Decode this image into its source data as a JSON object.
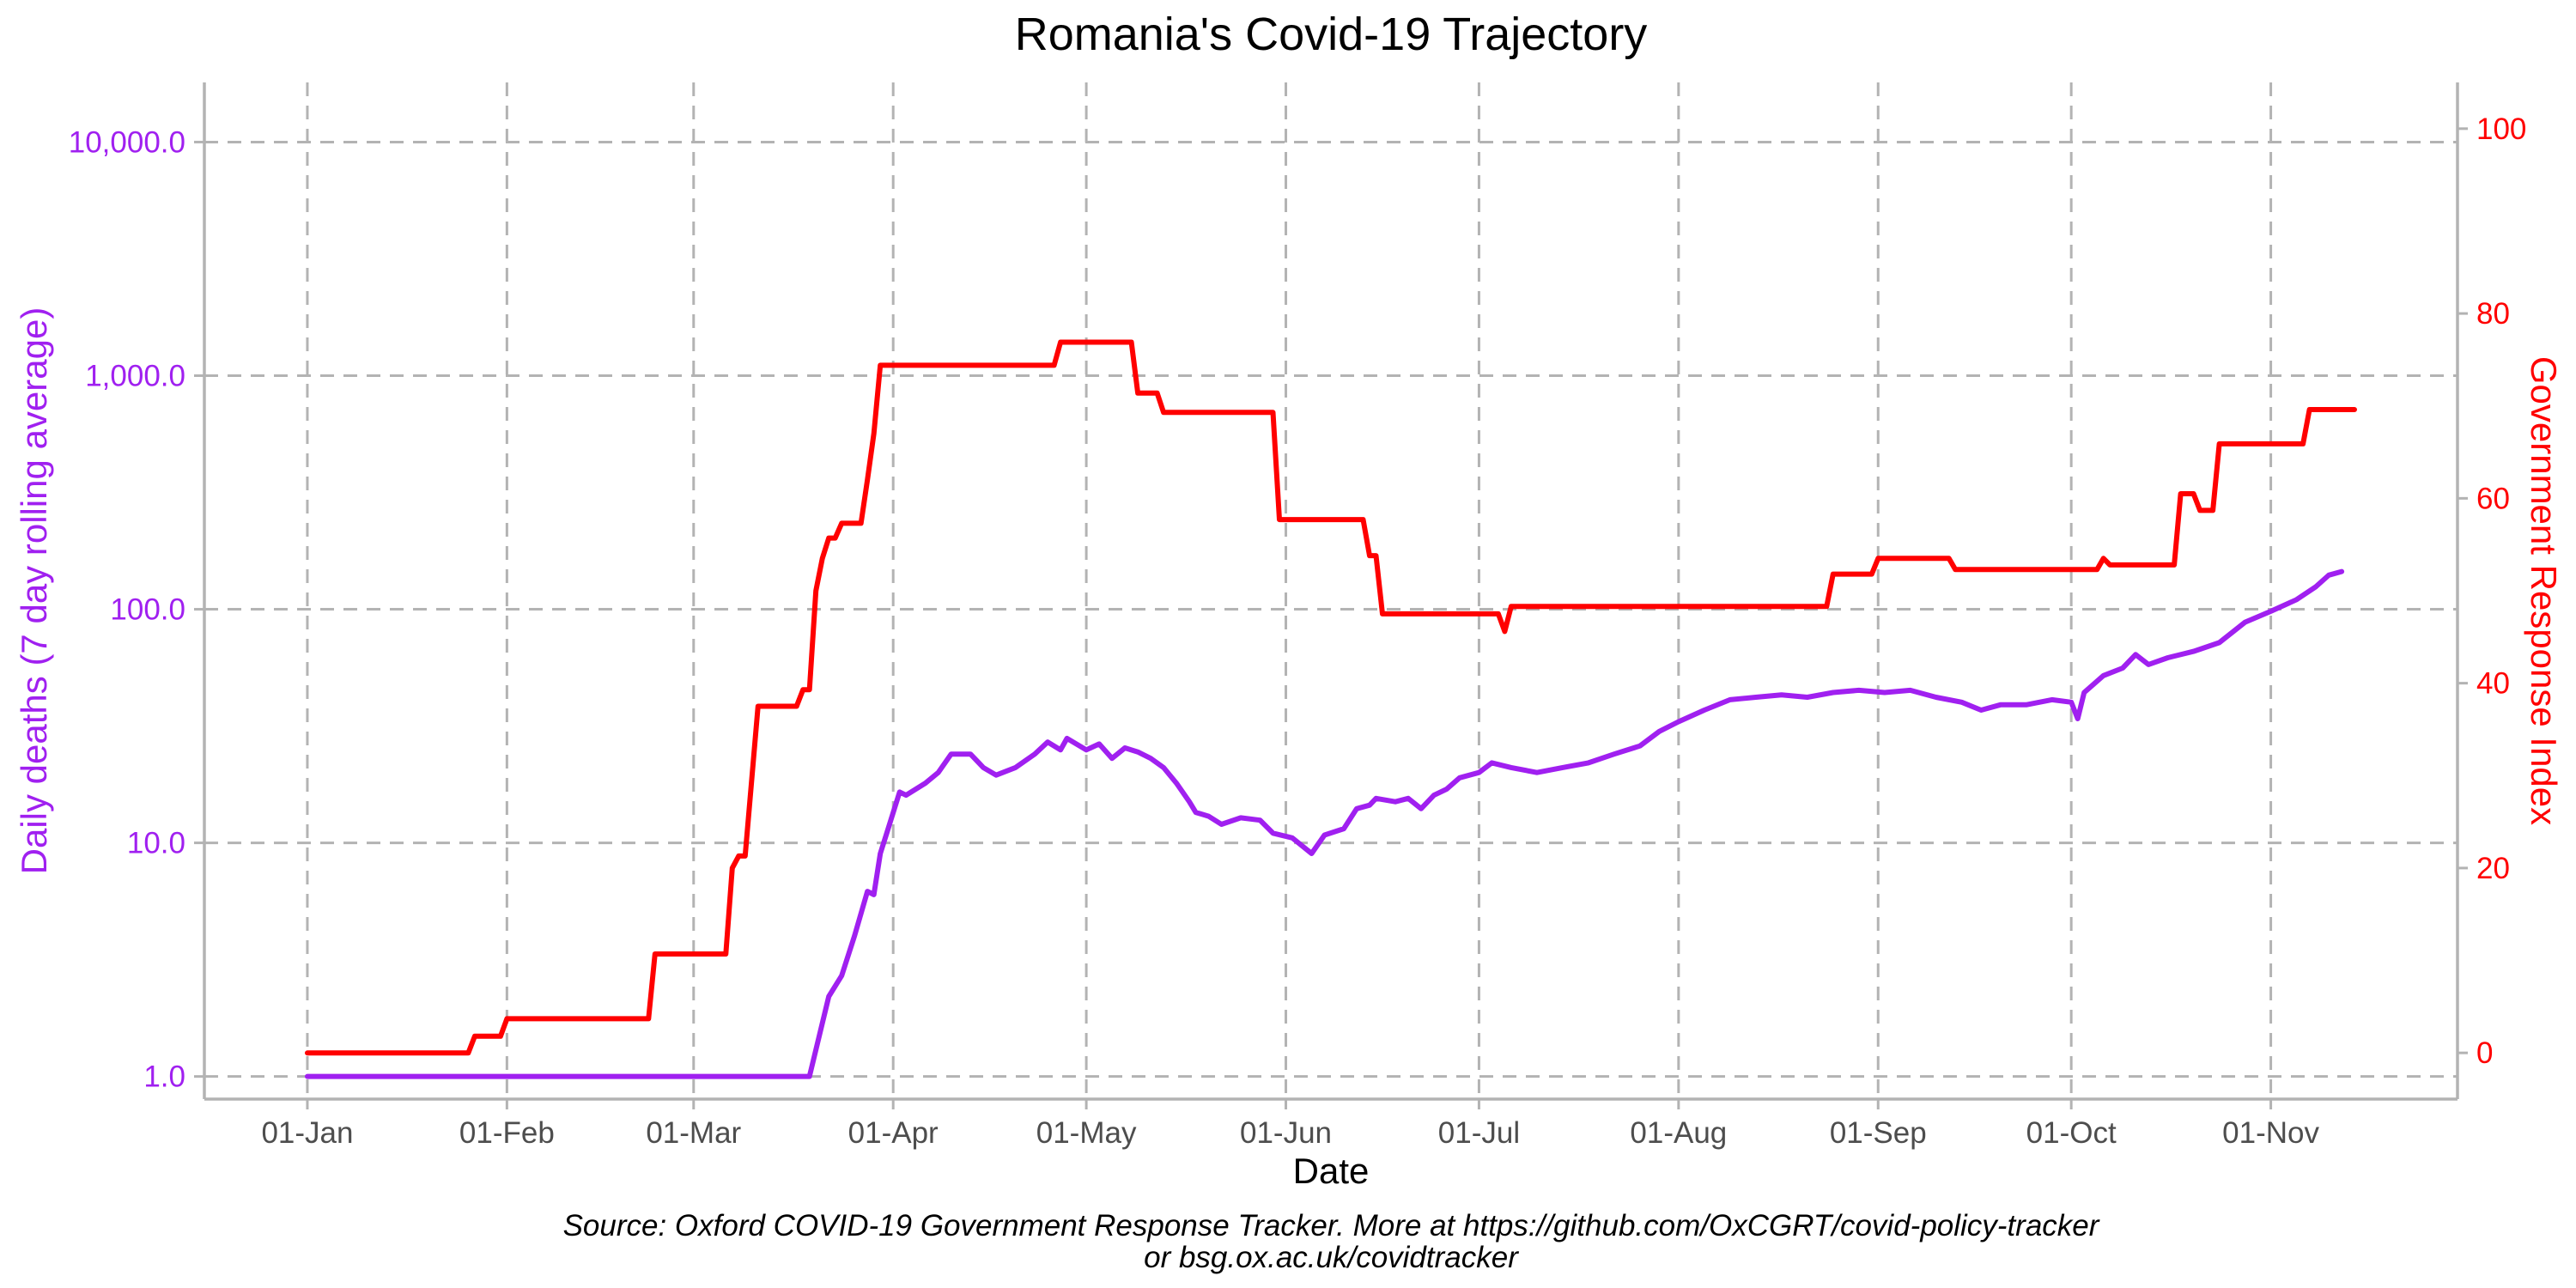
{
  "chart_data": {
    "type": "line",
    "title": "Romania's Covid-19 Trajectory",
    "xlabel": "Date",
    "ylabel_left": "Daily deaths (7 day rolling average)",
    "ylabel_right": "Government Response Index",
    "caption_lines": [
      "Source: Oxford COVID-19 Government Response Tracker. More at https://github.com/OxCGRT/covid-policy-tracker",
      "or bsg.ox.ac.uk/covidtracker"
    ],
    "x_tick_labels": [
      "01-Jan",
      "01-Feb",
      "01-Mar",
      "01-Apr",
      "01-May",
      "01-Jun",
      "01-Jul",
      "01-Aug",
      "01-Sep",
      "01-Oct",
      "01-Nov"
    ],
    "x_tick_dates": [
      "2020-01-01",
      "2020-02-01",
      "2020-03-01",
      "2020-04-01",
      "2020-05-01",
      "2020-06-01",
      "2020-07-01",
      "2020-08-01",
      "2020-09-01",
      "2020-10-01",
      "2020-11-01"
    ],
    "xlim": [
      "2019-12-16",
      "2020-11-30"
    ],
    "y_left": {
      "scale": "log10",
      "ylim": [
        0.8,
        18000
      ],
      "ticks": [
        1,
        10,
        100,
        1000,
        10000
      ],
      "tick_labels": [
        "1.0",
        "10.0",
        "100.0",
        "1,000.0",
        "10,000.0"
      ]
    },
    "y_right": {
      "scale": "linear",
      "ylim": [
        -5,
        105
      ],
      "ticks": [
        0,
        20,
        40,
        60,
        80,
        100
      ],
      "tick_labels": [
        "0",
        "20",
        "40",
        "60",
        "80",
        "100"
      ]
    },
    "grid": true,
    "series": [
      {
        "key": "deaths",
        "axis": "left",
        "color": "#a020f0",
        "points": [
          [
            "2020-01-01",
            1
          ],
          [
            "2020-03-19",
            1
          ],
          [
            "2020-03-20",
            1.3
          ],
          [
            "2020-03-22",
            2.2
          ],
          [
            "2020-03-24",
            2.7
          ],
          [
            "2020-03-26",
            4
          ],
          [
            "2020-03-28",
            6.2
          ],
          [
            "2020-03-29",
            6
          ],
          [
            "2020-03-30",
            9
          ],
          [
            "2020-03-31",
            11
          ],
          [
            "2020-04-02",
            16.5
          ],
          [
            "2020-04-03",
            16
          ],
          [
            "2020-04-06",
            18
          ],
          [
            "2020-04-08",
            20
          ],
          [
            "2020-04-10",
            24
          ],
          [
            "2020-04-13",
            24
          ],
          [
            "2020-04-15",
            21
          ],
          [
            "2020-04-17",
            19.5
          ],
          [
            "2020-04-20",
            21
          ],
          [
            "2020-04-23",
            24
          ],
          [
            "2020-04-25",
            27
          ],
          [
            "2020-04-27",
            25
          ],
          [
            "2020-04-28",
            28
          ],
          [
            "2020-05-01",
            25
          ],
          [
            "2020-05-03",
            26.5
          ],
          [
            "2020-05-05",
            23
          ],
          [
            "2020-05-07",
            25.5
          ],
          [
            "2020-05-09",
            24.5
          ],
          [
            "2020-05-11",
            23
          ],
          [
            "2020-05-13",
            21
          ],
          [
            "2020-05-15",
            18
          ],
          [
            "2020-05-17",
            15
          ],
          [
            "2020-05-18",
            13.5
          ],
          [
            "2020-05-20",
            13
          ],
          [
            "2020-05-22",
            12
          ],
          [
            "2020-05-25",
            12.8
          ],
          [
            "2020-05-28",
            12.5
          ],
          [
            "2020-05-30",
            11
          ],
          [
            "2020-06-02",
            10.5
          ],
          [
            "2020-06-05",
            9
          ],
          [
            "2020-06-07",
            10.8
          ],
          [
            "2020-06-10",
            11.5
          ],
          [
            "2020-06-12",
            14
          ],
          [
            "2020-06-14",
            14.5
          ],
          [
            "2020-06-15",
            15.5
          ],
          [
            "2020-06-18",
            15
          ],
          [
            "2020-06-20",
            15.5
          ],
          [
            "2020-06-22",
            14
          ],
          [
            "2020-06-24",
            16
          ],
          [
            "2020-06-26",
            17
          ],
          [
            "2020-06-28",
            19
          ],
          [
            "2020-07-01",
            20
          ],
          [
            "2020-07-03",
            22
          ],
          [
            "2020-07-06",
            21
          ],
          [
            "2020-07-10",
            20
          ],
          [
            "2020-07-14",
            21
          ],
          [
            "2020-07-18",
            22
          ],
          [
            "2020-07-22",
            24
          ],
          [
            "2020-07-26",
            26
          ],
          [
            "2020-07-29",
            30
          ],
          [
            "2020-08-01",
            33
          ],
          [
            "2020-08-05",
            37
          ],
          [
            "2020-08-09",
            41
          ],
          [
            "2020-08-13",
            42
          ],
          [
            "2020-08-17",
            43
          ],
          [
            "2020-08-21",
            42
          ],
          [
            "2020-08-25",
            44
          ],
          [
            "2020-08-29",
            45
          ],
          [
            "2020-09-02",
            44
          ],
          [
            "2020-09-06",
            45
          ],
          [
            "2020-09-10",
            42
          ],
          [
            "2020-09-14",
            40
          ],
          [
            "2020-09-17",
            37
          ],
          [
            "2020-09-20",
            39
          ],
          [
            "2020-09-24",
            39
          ],
          [
            "2020-09-28",
            41
          ],
          [
            "2020-10-01",
            40
          ],
          [
            "2020-10-02",
            34
          ],
          [
            "2020-10-03",
            44
          ],
          [
            "2020-10-06",
            52
          ],
          [
            "2020-10-09",
            56
          ],
          [
            "2020-10-11",
            64
          ],
          [
            "2020-10-13",
            58
          ],
          [
            "2020-10-16",
            62
          ],
          [
            "2020-10-20",
            66
          ],
          [
            "2020-10-24",
            72
          ],
          [
            "2020-10-28",
            88
          ],
          [
            "2020-11-01",
            98
          ],
          [
            "2020-11-05",
            110
          ],
          [
            "2020-11-08",
            125
          ],
          [
            "2020-11-10",
            140
          ],
          [
            "2020-11-12",
            145
          ]
        ]
      },
      {
        "key": "index",
        "axis": "right",
        "color": "#ff0000",
        "points": [
          [
            "2020-01-01",
            0
          ],
          [
            "2020-01-26",
            0
          ],
          [
            "2020-01-27",
            1.8
          ],
          [
            "2020-01-31",
            1.8
          ],
          [
            "2020-02-01",
            3.7
          ],
          [
            "2020-02-23",
            3.7
          ],
          [
            "2020-02-24",
            10.7
          ],
          [
            "2020-03-06",
            10.7
          ],
          [
            "2020-03-07",
            20
          ],
          [
            "2020-03-08",
            21.3
          ],
          [
            "2020-03-09",
            21.3
          ],
          [
            "2020-03-11",
            37.5
          ],
          [
            "2020-03-17",
            37.5
          ],
          [
            "2020-03-18",
            39.3
          ],
          [
            "2020-03-19",
            39.3
          ],
          [
            "2020-03-20",
            50
          ],
          [
            "2020-03-21",
            53.5
          ],
          [
            "2020-03-22",
            55.7
          ],
          [
            "2020-03-23",
            55.7
          ],
          [
            "2020-03-24",
            57.3
          ],
          [
            "2020-03-27",
            57.3
          ],
          [
            "2020-03-28",
            62
          ],
          [
            "2020-03-29",
            67
          ],
          [
            "2020-03-30",
            74.4
          ],
          [
            "2020-04-26",
            74.4
          ],
          [
            "2020-04-27",
            76.9
          ],
          [
            "2020-05-08",
            76.9
          ],
          [
            "2020-05-09",
            71.4
          ],
          [
            "2020-05-12",
            71.4
          ],
          [
            "2020-05-13",
            69.3
          ],
          [
            "2020-05-30",
            69.3
          ],
          [
            "2020-05-31",
            57.7
          ],
          [
            "2020-06-13",
            57.7
          ],
          [
            "2020-06-14",
            53.8
          ],
          [
            "2020-06-15",
            53.8
          ],
          [
            "2020-06-16",
            47.5
          ],
          [
            "2020-07-04",
            47.5
          ],
          [
            "2020-07-05",
            45.6
          ],
          [
            "2020-07-06",
            48.3
          ],
          [
            "2020-08-24",
            48.3
          ],
          [
            "2020-08-25",
            51.8
          ],
          [
            "2020-08-31",
            51.8
          ],
          [
            "2020-09-01",
            53.5
          ],
          [
            "2020-09-12",
            53.5
          ],
          [
            "2020-09-13",
            52.3
          ],
          [
            "2020-10-05",
            52.3
          ],
          [
            "2020-10-06",
            53.5
          ],
          [
            "2020-10-07",
            52.8
          ],
          [
            "2020-10-17",
            52.8
          ],
          [
            "2020-10-18",
            60.5
          ],
          [
            "2020-10-20",
            60.5
          ],
          [
            "2020-10-21",
            58.7
          ],
          [
            "2020-10-23",
            58.7
          ],
          [
            "2020-10-24",
            65.9
          ],
          [
            "2020-11-06",
            65.9
          ],
          [
            "2020-11-07",
            69.6
          ],
          [
            "2020-11-14",
            69.6
          ]
        ]
      }
    ]
  }
}
